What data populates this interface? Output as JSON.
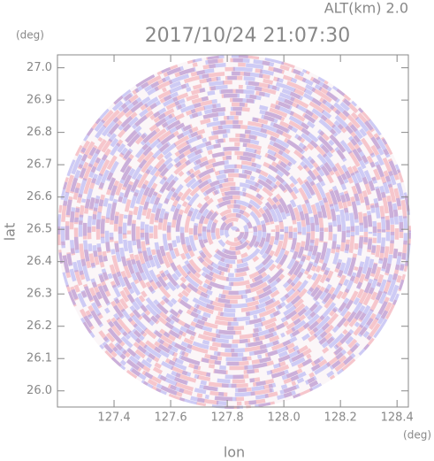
{
  "chart_data": {
    "type": "image",
    "title": "2017/10/24 21:07:30",
    "annotation": "ALT(km) 2.0",
    "x_label": "lon",
    "y_label": "lat",
    "x_unit": "(deg)",
    "y_unit": "(deg)",
    "xlim": [
      127.2,
      128.44
    ],
    "ylim": [
      25.95,
      27.04
    ],
    "xticks": [
      127.4,
      127.6,
      127.8,
      {
        "value": 128,
        "label": "128.0"
      },
      128.2,
      128.4
    ],
    "yticks": [
      {
        "value": 26,
        "label": "26.0"
      },
      26.1,
      26.2,
      26.3,
      26.4,
      26.5,
      26.6,
      26.7,
      26.8,
      26.9,
      {
        "value": 27,
        "label": "27.0"
      }
    ]
  }
}
